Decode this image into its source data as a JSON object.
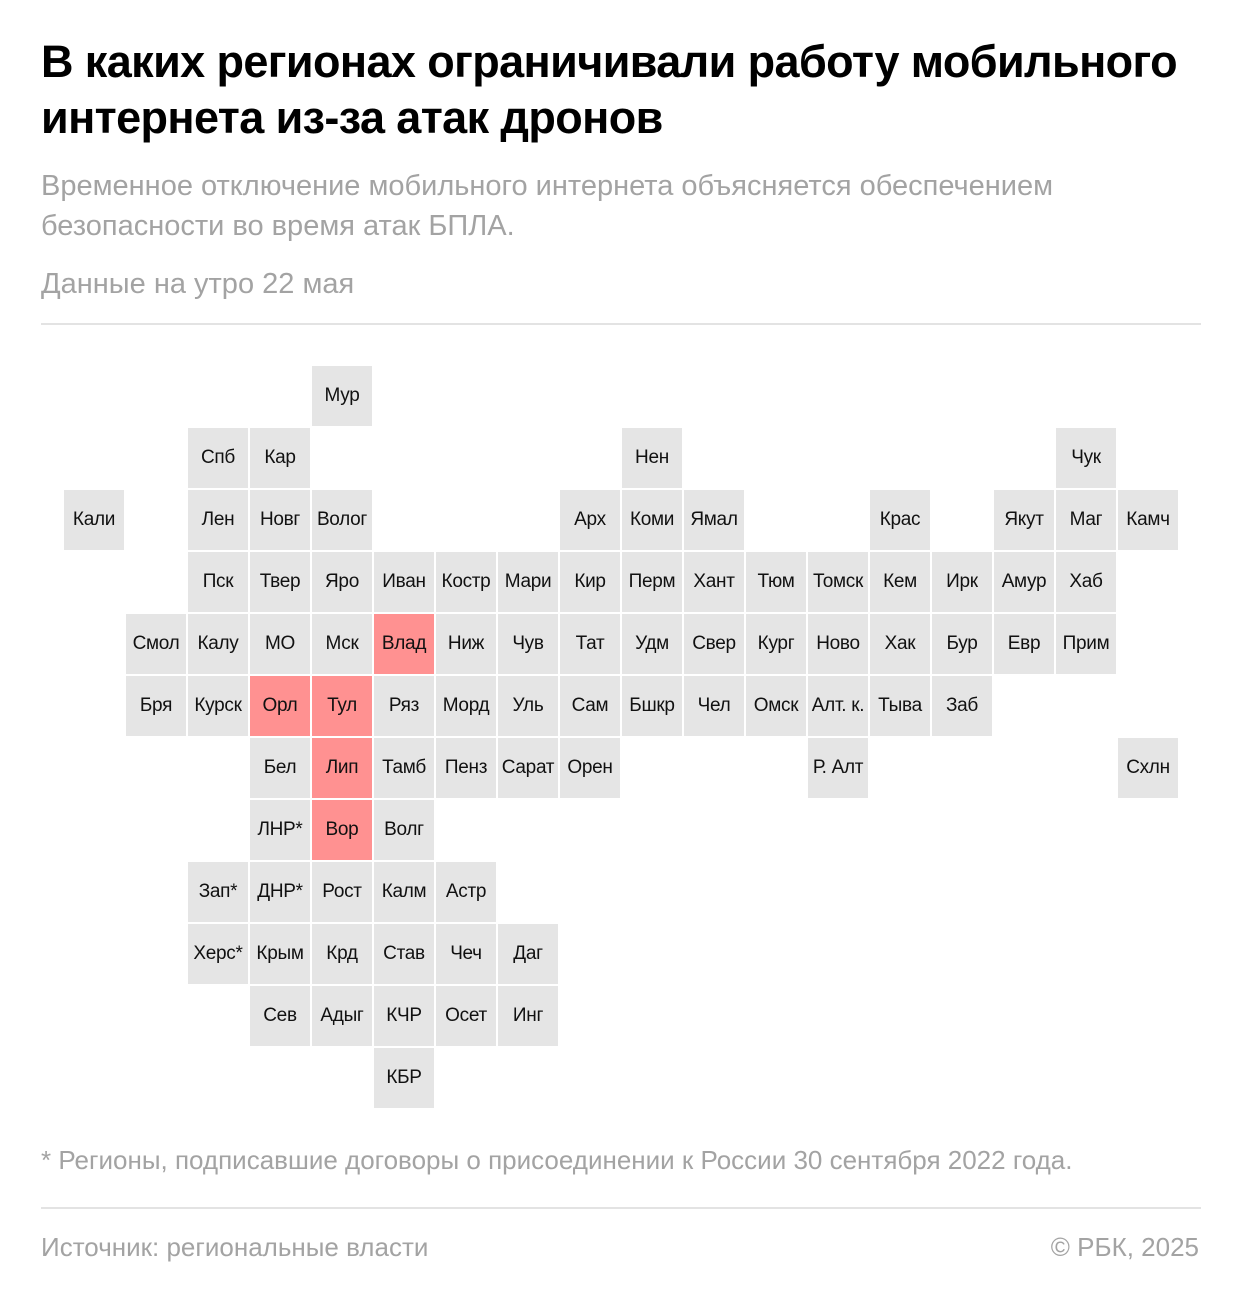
{
  "header": {
    "title": "В каких регионах ограничивали работу мобильного интернета из-за атак дронов",
    "subtitle": "Временное отключение мобильного интернета объясняется обеспечением безопасности во время атак БПЛА.",
    "date_note": "Данные на утро 22 мая"
  },
  "colors": {
    "restricted": "#ff9191",
    "normal": "#e5e5e5",
    "muted_text": "#a3a3a3"
  },
  "map": {
    "regions": [
      {
        "label": "Мур",
        "row": 0,
        "col": 4,
        "restricted": false
      },
      {
        "label": "Спб",
        "row": 1,
        "col": 2,
        "restricted": false
      },
      {
        "label": "Кар",
        "row": 1,
        "col": 3,
        "restricted": false
      },
      {
        "label": "Нен",
        "row": 1,
        "col": 9,
        "restricted": false
      },
      {
        "label": "Чук",
        "row": 1,
        "col": 16,
        "restricted": false
      },
      {
        "label": "Кали",
        "row": 2,
        "col": 0,
        "restricted": false
      },
      {
        "label": "Лен",
        "row": 2,
        "col": 2,
        "restricted": false
      },
      {
        "label": "Новг",
        "row": 2,
        "col": 3,
        "restricted": false
      },
      {
        "label": "Волог",
        "row": 2,
        "col": 4,
        "restricted": false
      },
      {
        "label": "Арх",
        "row": 2,
        "col": 8,
        "restricted": false
      },
      {
        "label": "Коми",
        "row": 2,
        "col": 9,
        "restricted": false
      },
      {
        "label": "Ямал",
        "row": 2,
        "col": 10,
        "restricted": false
      },
      {
        "label": "Крас",
        "row": 2,
        "col": 13,
        "restricted": false
      },
      {
        "label": "Якут",
        "row": 2,
        "col": 15,
        "restricted": false
      },
      {
        "label": "Маг",
        "row": 2,
        "col": 16,
        "restricted": false
      },
      {
        "label": "Камч",
        "row": 2,
        "col": 17,
        "restricted": false
      },
      {
        "label": "Пск",
        "row": 3,
        "col": 2,
        "restricted": false
      },
      {
        "label": "Твер",
        "row": 3,
        "col": 3,
        "restricted": false
      },
      {
        "label": "Яро",
        "row": 3,
        "col": 4,
        "restricted": false
      },
      {
        "label": "Иван",
        "row": 3,
        "col": 5,
        "restricted": false
      },
      {
        "label": "Костр",
        "row": 3,
        "col": 6,
        "restricted": false
      },
      {
        "label": "Мари",
        "row": 3,
        "col": 7,
        "restricted": false
      },
      {
        "label": "Кир",
        "row": 3,
        "col": 8,
        "restricted": false
      },
      {
        "label": "Перм",
        "row": 3,
        "col": 9,
        "restricted": false
      },
      {
        "label": "Хант",
        "row": 3,
        "col": 10,
        "restricted": false
      },
      {
        "label": "Тюм",
        "row": 3,
        "col": 11,
        "restricted": false
      },
      {
        "label": "Томск",
        "row": 3,
        "col": 12,
        "restricted": false
      },
      {
        "label": "Кем",
        "row": 3,
        "col": 13,
        "restricted": false
      },
      {
        "label": "Ирк",
        "row": 3,
        "col": 14,
        "restricted": false
      },
      {
        "label": "Амур",
        "row": 3,
        "col": 15,
        "restricted": false
      },
      {
        "label": "Хаб",
        "row": 3,
        "col": 16,
        "restricted": false
      },
      {
        "label": "Смол",
        "row": 4,
        "col": 1,
        "restricted": false
      },
      {
        "label": "Калу",
        "row": 4,
        "col": 2,
        "restricted": false
      },
      {
        "label": "МО",
        "row": 4,
        "col": 3,
        "restricted": false
      },
      {
        "label": "Мск",
        "row": 4,
        "col": 4,
        "restricted": false
      },
      {
        "label": "Влад",
        "row": 4,
        "col": 5,
        "restricted": true
      },
      {
        "label": "Ниж",
        "row": 4,
        "col": 6,
        "restricted": false
      },
      {
        "label": "Чув",
        "row": 4,
        "col": 7,
        "restricted": false
      },
      {
        "label": "Тат",
        "row": 4,
        "col": 8,
        "restricted": false
      },
      {
        "label": "Удм",
        "row": 4,
        "col": 9,
        "restricted": false
      },
      {
        "label": "Свер",
        "row": 4,
        "col": 10,
        "restricted": false
      },
      {
        "label": "Кург",
        "row": 4,
        "col": 11,
        "restricted": false
      },
      {
        "label": "Ново",
        "row": 4,
        "col": 12,
        "restricted": false
      },
      {
        "label": "Хак",
        "row": 4,
        "col": 13,
        "restricted": false
      },
      {
        "label": "Бур",
        "row": 4,
        "col": 14,
        "restricted": false
      },
      {
        "label": "Евр",
        "row": 4,
        "col": 15,
        "restricted": false
      },
      {
        "label": "Прим",
        "row": 4,
        "col": 16,
        "restricted": false
      },
      {
        "label": "Бря",
        "row": 5,
        "col": 1,
        "restricted": false
      },
      {
        "label": "Курск",
        "row": 5,
        "col": 2,
        "restricted": false
      },
      {
        "label": "Орл",
        "row": 5,
        "col": 3,
        "restricted": true
      },
      {
        "label": "Тул",
        "row": 5,
        "col": 4,
        "restricted": true
      },
      {
        "label": "Ряз",
        "row": 5,
        "col": 5,
        "restricted": false
      },
      {
        "label": "Морд",
        "row": 5,
        "col": 6,
        "restricted": false
      },
      {
        "label": "Уль",
        "row": 5,
        "col": 7,
        "restricted": false
      },
      {
        "label": "Сам",
        "row": 5,
        "col": 8,
        "restricted": false
      },
      {
        "label": "Бшкр",
        "row": 5,
        "col": 9,
        "restricted": false
      },
      {
        "label": "Чел",
        "row": 5,
        "col": 10,
        "restricted": false
      },
      {
        "label": "Омск",
        "row": 5,
        "col": 11,
        "restricted": false
      },
      {
        "label": "Алт. к.",
        "row": 5,
        "col": 12,
        "restricted": false
      },
      {
        "label": "Тыва",
        "row": 5,
        "col": 13,
        "restricted": false
      },
      {
        "label": "Заб",
        "row": 5,
        "col": 14,
        "restricted": false
      },
      {
        "label": "Бел",
        "row": 6,
        "col": 3,
        "restricted": false
      },
      {
        "label": "Лип",
        "row": 6,
        "col": 4,
        "restricted": true
      },
      {
        "label": "Тамб",
        "row": 6,
        "col": 5,
        "restricted": false
      },
      {
        "label": "Пенз",
        "row": 6,
        "col": 6,
        "restricted": false
      },
      {
        "label": "Сарат",
        "row": 6,
        "col": 7,
        "restricted": false
      },
      {
        "label": "Орен",
        "row": 6,
        "col": 8,
        "restricted": false
      },
      {
        "label": "Р. Алт",
        "row": 6,
        "col": 12,
        "restricted": false
      },
      {
        "label": "Схлн",
        "row": 6,
        "col": 17,
        "restricted": false
      },
      {
        "label": "ЛНР*",
        "row": 7,
        "col": 3,
        "restricted": false
      },
      {
        "label": "Вор",
        "row": 7,
        "col": 4,
        "restricted": true
      },
      {
        "label": "Волг",
        "row": 7,
        "col": 5,
        "restricted": false
      },
      {
        "label": "Зап*",
        "row": 8,
        "col": 2,
        "restricted": false
      },
      {
        "label": "ДНР*",
        "row": 8,
        "col": 3,
        "restricted": false
      },
      {
        "label": "Рост",
        "row": 8,
        "col": 4,
        "restricted": false
      },
      {
        "label": "Калм",
        "row": 8,
        "col": 5,
        "restricted": false
      },
      {
        "label": "Астр",
        "row": 8,
        "col": 6,
        "restricted": false
      },
      {
        "label": "Херс*",
        "row": 9,
        "col": 2,
        "restricted": false
      },
      {
        "label": "Крым",
        "row": 9,
        "col": 3,
        "restricted": false
      },
      {
        "label": "Крд",
        "row": 9,
        "col": 4,
        "restricted": false
      },
      {
        "label": "Став",
        "row": 9,
        "col": 5,
        "restricted": false
      },
      {
        "label": "Чеч",
        "row": 9,
        "col": 6,
        "restricted": false
      },
      {
        "label": "Даг",
        "row": 9,
        "col": 7,
        "restricted": false
      },
      {
        "label": "Сев",
        "row": 10,
        "col": 3,
        "restricted": false
      },
      {
        "label": "Адыг",
        "row": 10,
        "col": 4,
        "restricted": false
      },
      {
        "label": "КЧР",
        "row": 10,
        "col": 5,
        "restricted": false
      },
      {
        "label": "Осет",
        "row": 10,
        "col": 6,
        "restricted": false
      },
      {
        "label": "Инг",
        "row": 10,
        "col": 7,
        "restricted": false
      },
      {
        "label": "КБР",
        "row": 11,
        "col": 5,
        "restricted": false
      }
    ]
  },
  "footer": {
    "footnote": "* Регионы, подписавшие договоры о присоединении к России 30 сентября 2022 года.",
    "source": "Источник: региональные власти",
    "copyright": "© РБК, 2025"
  }
}
